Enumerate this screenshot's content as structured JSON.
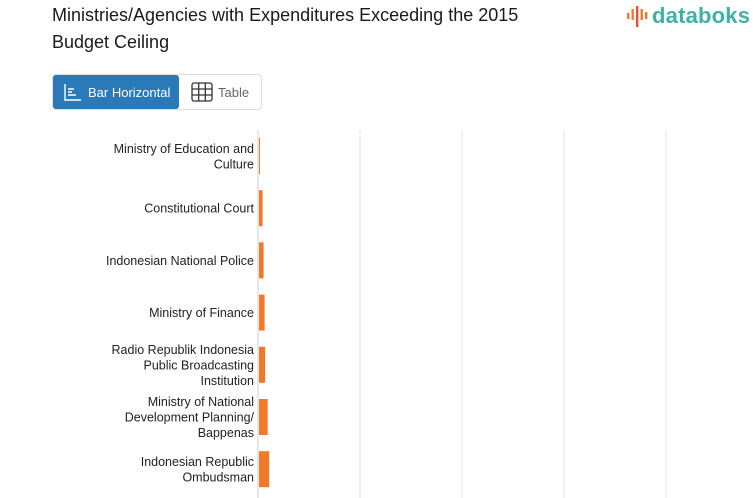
{
  "header": {
    "title": "Ministries/Agencies with Expenditures Exceeding the 2015 Budget Ceiling",
    "logo_text": "databoks"
  },
  "toggle": {
    "bar_label": "Bar Horizontal",
    "table_label": "Table"
  },
  "colors": {
    "bar": "#f07a2a",
    "grid": "#e6e6e6",
    "active": "#2a7ab9",
    "logo": "#3fb1a6"
  },
  "chart_data": {
    "type": "bar",
    "orientation": "horizontal",
    "title": "Ministries/Agencies with Expenditures Exceeding the 2015 Budget Ceiling",
    "categories": [
      [
        "Ministry of Education and",
        "Culture"
      ],
      [
        "Constitutional Court"
      ],
      [
        "Indonesian National Police"
      ],
      [
        "Ministry of Finance"
      ],
      [
        "Radio Republik Indonesia",
        "Public Broadcasting",
        "Institution"
      ],
      [
        "Ministry of National",
        "Development Planning/",
        "Bappenas"
      ],
      [
        "Indonesian Republic",
        "Ombudsman"
      ]
    ],
    "values": [
      0.5,
      3.5,
      4.5,
      5.5,
      6,
      8.5,
      10
    ],
    "xlim": [
      0,
      485
    ],
    "gridlines": [
      0,
      100,
      200,
      300,
      400
    ],
    "grid": true,
    "legend": "none"
  }
}
